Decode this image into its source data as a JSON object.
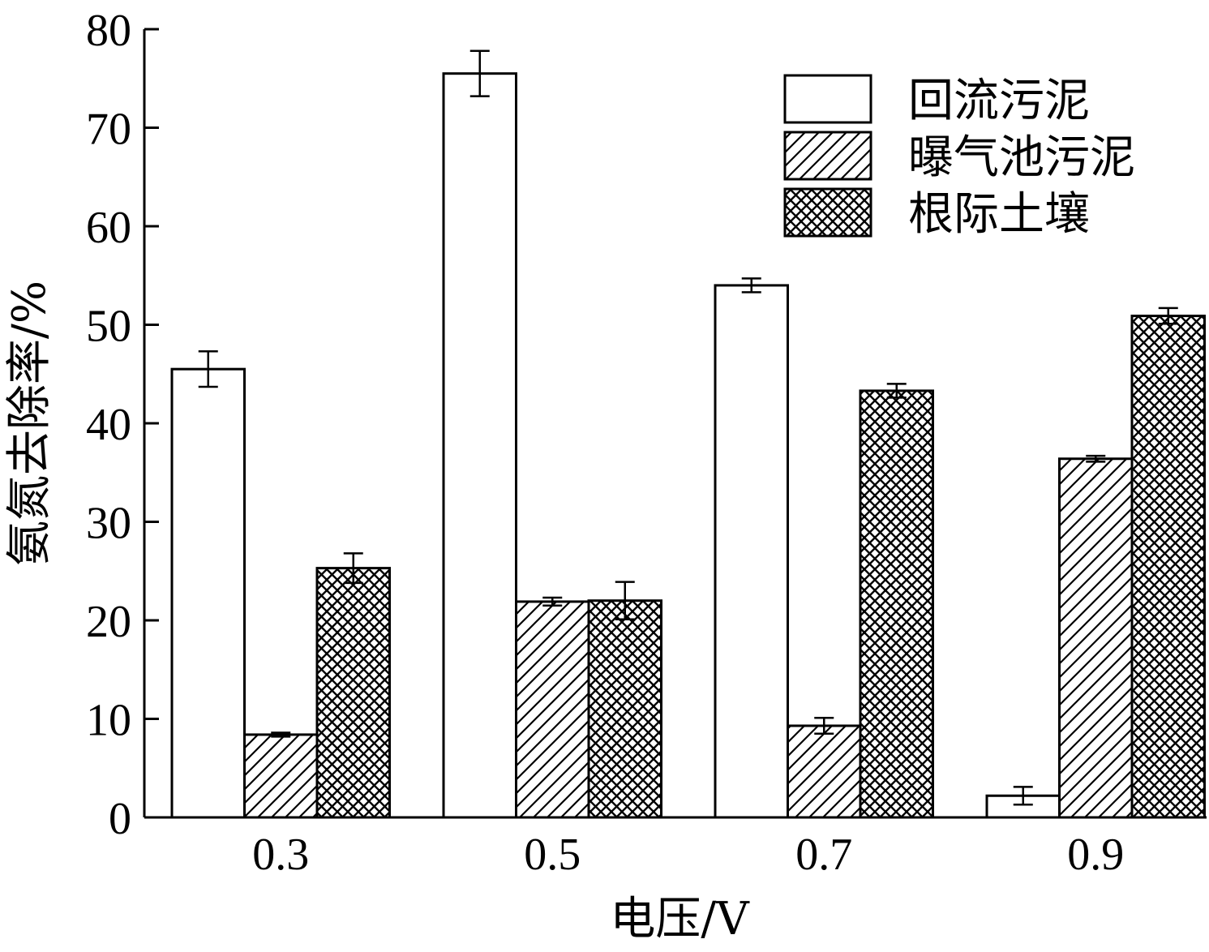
{
  "chart_data": {
    "type": "bar",
    "title": "",
    "xlabel": "电压/V",
    "ylabel": "氨氮去除率/%",
    "categories": [
      "0.3",
      "0.5",
      "0.7",
      "0.9"
    ],
    "ylim": [
      0,
      80
    ],
    "yticks": [
      0,
      10,
      20,
      30,
      40,
      50,
      60,
      70,
      80
    ],
    "legend_position": "top-right",
    "series": [
      {
        "name": "回流污泥",
        "pattern": "none",
        "values": [
          45.5,
          75.5,
          54.0,
          2.2
        ],
        "errors": [
          1.8,
          2.3,
          0.7,
          0.9
        ]
      },
      {
        "name": "曝气池污泥",
        "pattern": "diagonal",
        "values": [
          8.4,
          21.9,
          9.3,
          36.4
        ],
        "errors": [
          0.2,
          0.4,
          0.8,
          0.3
        ]
      },
      {
        "name": "根际土壤",
        "pattern": "crosshatch",
        "values": [
          25.3,
          22.0,
          43.3,
          50.9
        ],
        "errors": [
          1.5,
          1.9,
          0.7,
          0.8
        ]
      }
    ]
  }
}
